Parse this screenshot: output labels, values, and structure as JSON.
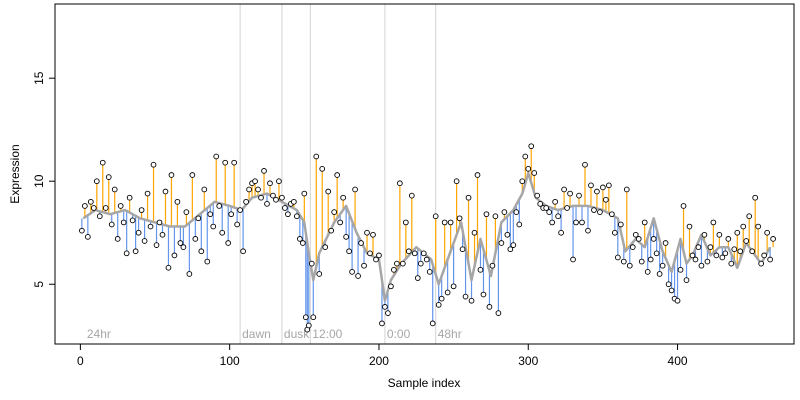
{
  "chart_data": {
    "type": "scatter",
    "xlabel": "Sample index",
    "ylabel": "Expression",
    "xlim": [
      -17,
      478
    ],
    "ylim": [
      2.1,
      18.6
    ],
    "xticks": [
      0,
      100,
      200,
      300,
      400
    ],
    "yticks": [
      5,
      10,
      15
    ],
    "grid": false,
    "annotations": [
      {
        "label": "24hr",
        "x": 3,
        "line": false
      },
      {
        "label": "dawn",
        "x": 107,
        "line": true
      },
      {
        "label": "dusk",
        "x": 135,
        "line": true
      },
      {
        "label": "12:00",
        "x": 154,
        "line": true
      },
      {
        "label": "0:00",
        "x": 204,
        "line": true
      },
      {
        "label": "48hr",
        "x": 238,
        "line": true
      }
    ],
    "colors": {
      "above": "#ffa500",
      "below": "#6495ed",
      "fit": "#a6a6a6",
      "vline": "#d3d3d3",
      "point_edge": "#000000"
    },
    "fit_curve": [
      [
        2,
        8.2
      ],
      [
        10,
        8.6
      ],
      [
        20,
        8.4
      ],
      [
        30,
        8.6
      ],
      [
        40,
        8.2
      ],
      [
        50,
        8.0
      ],
      [
        60,
        7.8
      ],
      [
        70,
        7.8
      ],
      [
        80,
        8.4
      ],
      [
        90,
        9.0
      ],
      [
        100,
        8.8
      ],
      [
        108,
        8.6
      ],
      [
        115,
        9.2
      ],
      [
        125,
        9.4
      ],
      [
        135,
        9.0
      ],
      [
        145,
        8.6
      ],
      [
        150,
        8.0
      ],
      [
        153,
        6.5
      ],
      [
        156,
        5.2
      ],
      [
        160,
        6.5
      ],
      [
        170,
        8.0
      ],
      [
        178,
        8.8
      ],
      [
        185,
        7.5
      ],
      [
        192,
        6.5
      ],
      [
        200,
        6.2
      ],
      [
        204,
        4.2
      ],
      [
        208,
        5.2
      ],
      [
        215,
        6.0
      ],
      [
        225,
        6.8
      ],
      [
        235,
        6.2
      ],
      [
        240,
        5.0
      ],
      [
        248,
        6.6
      ],
      [
        255,
        8.0
      ],
      [
        262,
        5.2
      ],
      [
        268,
        7.2
      ],
      [
        275,
        5.4
      ],
      [
        282,
        8.0
      ],
      [
        290,
        8.6
      ],
      [
        296,
        9.4
      ],
      [
        300,
        10.4
      ],
      [
        305,
        9.2
      ],
      [
        312,
        8.8
      ],
      [
        320,
        8.6
      ],
      [
        330,
        8.8
      ],
      [
        340,
        8.8
      ],
      [
        350,
        8.6
      ],
      [
        360,
        8.2
      ],
      [
        365,
        6.6
      ],
      [
        372,
        7.2
      ],
      [
        378,
        6.8
      ],
      [
        384,
        8.2
      ],
      [
        390,
        6.6
      ],
      [
        396,
        5.6
      ],
      [
        402,
        7.2
      ],
      [
        406,
        6.0
      ],
      [
        410,
        6.4
      ],
      [
        416,
        7.4
      ],
      [
        422,
        6.4
      ],
      [
        428,
        6.8
      ],
      [
        434,
        6.8
      ],
      [
        440,
        5.8
      ],
      [
        446,
        7.0
      ],
      [
        452,
        6.4
      ],
      [
        456,
        6.0
      ],
      [
        462,
        6.8
      ]
    ],
    "points": [
      [
        1,
        7.6
      ],
      [
        3,
        8.8
      ],
      [
        5,
        7.3
      ],
      [
        7,
        9.0
      ],
      [
        9,
        8.7
      ],
      [
        11,
        10.0
      ],
      [
        13,
        8.3
      ],
      [
        15,
        10.9
      ],
      [
        17,
        8.7
      ],
      [
        19,
        10.2
      ],
      [
        21,
        7.9
      ],
      [
        23,
        9.6
      ],
      [
        25,
        7.2
      ],
      [
        27,
        8.8
      ],
      [
        29,
        8.0
      ],
      [
        31,
        6.5
      ],
      [
        33,
        9.2
      ],
      [
        35,
        8.1
      ],
      [
        37,
        6.6
      ],
      [
        39,
        7.5
      ],
      [
        41,
        8.6
      ],
      [
        43,
        7.1
      ],
      [
        45,
        9.4
      ],
      [
        47,
        7.8
      ],
      [
        49,
        10.8
      ],
      [
        51,
        6.9
      ],
      [
        53,
        8.0
      ],
      [
        55,
        7.4
      ],
      [
        57,
        9.5
      ],
      [
        59,
        5.8
      ],
      [
        61,
        10.3
      ],
      [
        63,
        6.4
      ],
      [
        65,
        9.0
      ],
      [
        67,
        7.0
      ],
      [
        69,
        6.8
      ],
      [
        71,
        8.5
      ],
      [
        73,
        5.5
      ],
      [
        75,
        10.3
      ],
      [
        77,
        7.2
      ],
      [
        79,
        8.2
      ],
      [
        81,
        6.6
      ],
      [
        83,
        9.6
      ],
      [
        85,
        6.1
      ],
      [
        87,
        8.4
      ],
      [
        89,
        7.8
      ],
      [
        91,
        11.2
      ],
      [
        93,
        8.8
      ],
      [
        95,
        7.5
      ],
      [
        97,
        10.9
      ],
      [
        99,
        7.0
      ],
      [
        101,
        8.4
      ],
      [
        103,
        10.9
      ],
      [
        105,
        7.9
      ],
      [
        107,
        8.6
      ],
      [
        109,
        6.6
      ],
      [
        111,
        9.0
      ],
      [
        113,
        9.6
      ],
      [
        115,
        9.9
      ],
      [
        117,
        10.0
      ],
      [
        119,
        9.6
      ],
      [
        121,
        9.2
      ],
      [
        123,
        10.5
      ],
      [
        125,
        8.9
      ],
      [
        127,
        9.9
      ],
      [
        129,
        9.3
      ],
      [
        131,
        9.1
      ],
      [
        133,
        10.0
      ],
      [
        135,
        9.2
      ],
      [
        137,
        8.7
      ],
      [
        139,
        8.4
      ],
      [
        141,
        8.9
      ],
      [
        143,
        9.0
      ],
      [
        145,
        8.3
      ],
      [
        147,
        7.2
      ],
      [
        149,
        7.0
      ],
      [
        150,
        9.4
      ],
      [
        151,
        3.4
      ],
      [
        152,
        2.8
      ],
      [
        153,
        3.0
      ],
      [
        155,
        6.0
      ],
      [
        156,
        3.4
      ],
      [
        158,
        11.2
      ],
      [
        160,
        5.5
      ],
      [
        162,
        10.6
      ],
      [
        164,
        6.8
      ],
      [
        166,
        9.5
      ],
      [
        168,
        7.6
      ],
      [
        170,
        8.5
      ],
      [
        172,
        10.3
      ],
      [
        174,
        8.0
      ],
      [
        176,
        9.2
      ],
      [
        178,
        7.3
      ],
      [
        180,
        6.6
      ],
      [
        182,
        5.6
      ],
      [
        184,
        9.6
      ],
      [
        186,
        5.4
      ],
      [
        188,
        7.0
      ],
      [
        190,
        5.9
      ],
      [
        192,
        7.5
      ],
      [
        194,
        6.5
      ],
      [
        196,
        7.4
      ],
      [
        198,
        6.2
      ],
      [
        200,
        6.4
      ],
      [
        202,
        3.1
      ],
      [
        204,
        3.9
      ],
      [
        206,
        3.6
      ],
      [
        208,
        4.9
      ],
      [
        210,
        5.7
      ],
      [
        212,
        6.0
      ],
      [
        214,
        9.9
      ],
      [
        216,
        6.0
      ],
      [
        218,
        8.0
      ],
      [
        220,
        6.6
      ],
      [
        222,
        9.3
      ],
      [
        224,
        6.5
      ],
      [
        226,
        5.3
      ],
      [
        228,
        6.0
      ],
      [
        230,
        6.5
      ],
      [
        232,
        6.2
      ],
      [
        234,
        5.6
      ],
      [
        236,
        3.1
      ],
      [
        238,
        8.3
      ],
      [
        240,
        4.0
      ],
      [
        242,
        4.3
      ],
      [
        244,
        8.0
      ],
      [
        246,
        4.6
      ],
      [
        248,
        8.0
      ],
      [
        250,
        4.9
      ],
      [
        252,
        10.0
      ],
      [
        254,
        8.2
      ],
      [
        256,
        6.7
      ],
      [
        258,
        4.4
      ],
      [
        260,
        9.2
      ],
      [
        262,
        4.2
      ],
      [
        264,
        7.5
      ],
      [
        266,
        10.3
      ],
      [
        268,
        5.7
      ],
      [
        270,
        4.5
      ],
      [
        272,
        8.4
      ],
      [
        274,
        3.9
      ],
      [
        276,
        5.9
      ],
      [
        278,
        8.3
      ],
      [
        280,
        3.6
      ],
      [
        282,
        7.0
      ],
      [
        284,
        8.5
      ],
      [
        286,
        7.4
      ],
      [
        288,
        6.7
      ],
      [
        290,
        6.9
      ],
      [
        292,
        8.5
      ],
      [
        294,
        7.9
      ],
      [
        296,
        10.0
      ],
      [
        298,
        11.2
      ],
      [
        300,
        10.6
      ],
      [
        302,
        11.7
      ],
      [
        304,
        10.4
      ],
      [
        306,
        9.3
      ],
      [
        308,
        8.9
      ],
      [
        310,
        8.7
      ],
      [
        312,
        8.7
      ],
      [
        314,
        8.5
      ],
      [
        316,
        8.0
      ],
      [
        318,
        9.0
      ],
      [
        320,
        8.3
      ],
      [
        322,
        7.5
      ],
      [
        324,
        9.6
      ],
      [
        326,
        8.7
      ],
      [
        328,
        9.4
      ],
      [
        330,
        6.2
      ],
      [
        332,
        8.0
      ],
      [
        334,
        9.3
      ],
      [
        336,
        8.0
      ],
      [
        338,
        10.8
      ],
      [
        340,
        7.6
      ],
      [
        342,
        9.8
      ],
      [
        344,
        8.6
      ],
      [
        346,
        9.5
      ],
      [
        348,
        8.5
      ],
      [
        350,
        9.7
      ],
      [
        352,
        9.1
      ],
      [
        354,
        9.8
      ],
      [
        356,
        8.4
      ],
      [
        358,
        7.5
      ],
      [
        360,
        6.3
      ],
      [
        362,
        7.9
      ],
      [
        364,
        6.1
      ],
      [
        366,
        9.6
      ],
      [
        368,
        5.9
      ],
      [
        370,
        6.8
      ],
      [
        372,
        7.4
      ],
      [
        374,
        7.2
      ],
      [
        376,
        6.1
      ],
      [
        378,
        8.0
      ],
      [
        380,
        5.6
      ],
      [
        382,
        6.2
      ],
      [
        384,
        7.2
      ],
      [
        386,
        6.5
      ],
      [
        388,
        5.5
      ],
      [
        390,
        5.9
      ],
      [
        392,
        7.0
      ],
      [
        394,
        5.0
      ],
      [
        396,
        4.7
      ],
      [
        398,
        4.3
      ],
      [
        400,
        4.2
      ],
      [
        402,
        5.7
      ],
      [
        404,
        8.8
      ],
      [
        406,
        5.2
      ],
      [
        408,
        7.8
      ],
      [
        410,
        6.4
      ],
      [
        412,
        6.2
      ],
      [
        414,
        6.8
      ],
      [
        416,
        5.9
      ],
      [
        418,
        7.4
      ],
      [
        420,
        6.1
      ],
      [
        422,
        6.8
      ],
      [
        424,
        8.0
      ],
      [
        426,
        6.4
      ],
      [
        428,
        7.4
      ],
      [
        430,
        6.3
      ],
      [
        432,
        6.5
      ],
      [
        434,
        7.2
      ],
      [
        436,
        6.0
      ],
      [
        438,
        6.7
      ],
      [
        440,
        7.5
      ],
      [
        442,
        6.6
      ],
      [
        444,
        7.8
      ],
      [
        446,
        7.1
      ],
      [
        448,
        8.3
      ],
      [
        450,
        6.6
      ],
      [
        452,
        9.2
      ],
      [
        454,
        7.8
      ],
      [
        456,
        6.0
      ],
      [
        458,
        6.4
      ],
      [
        460,
        7.5
      ],
      [
        462,
        6.2
      ],
      [
        464,
        7.2
      ]
    ]
  }
}
